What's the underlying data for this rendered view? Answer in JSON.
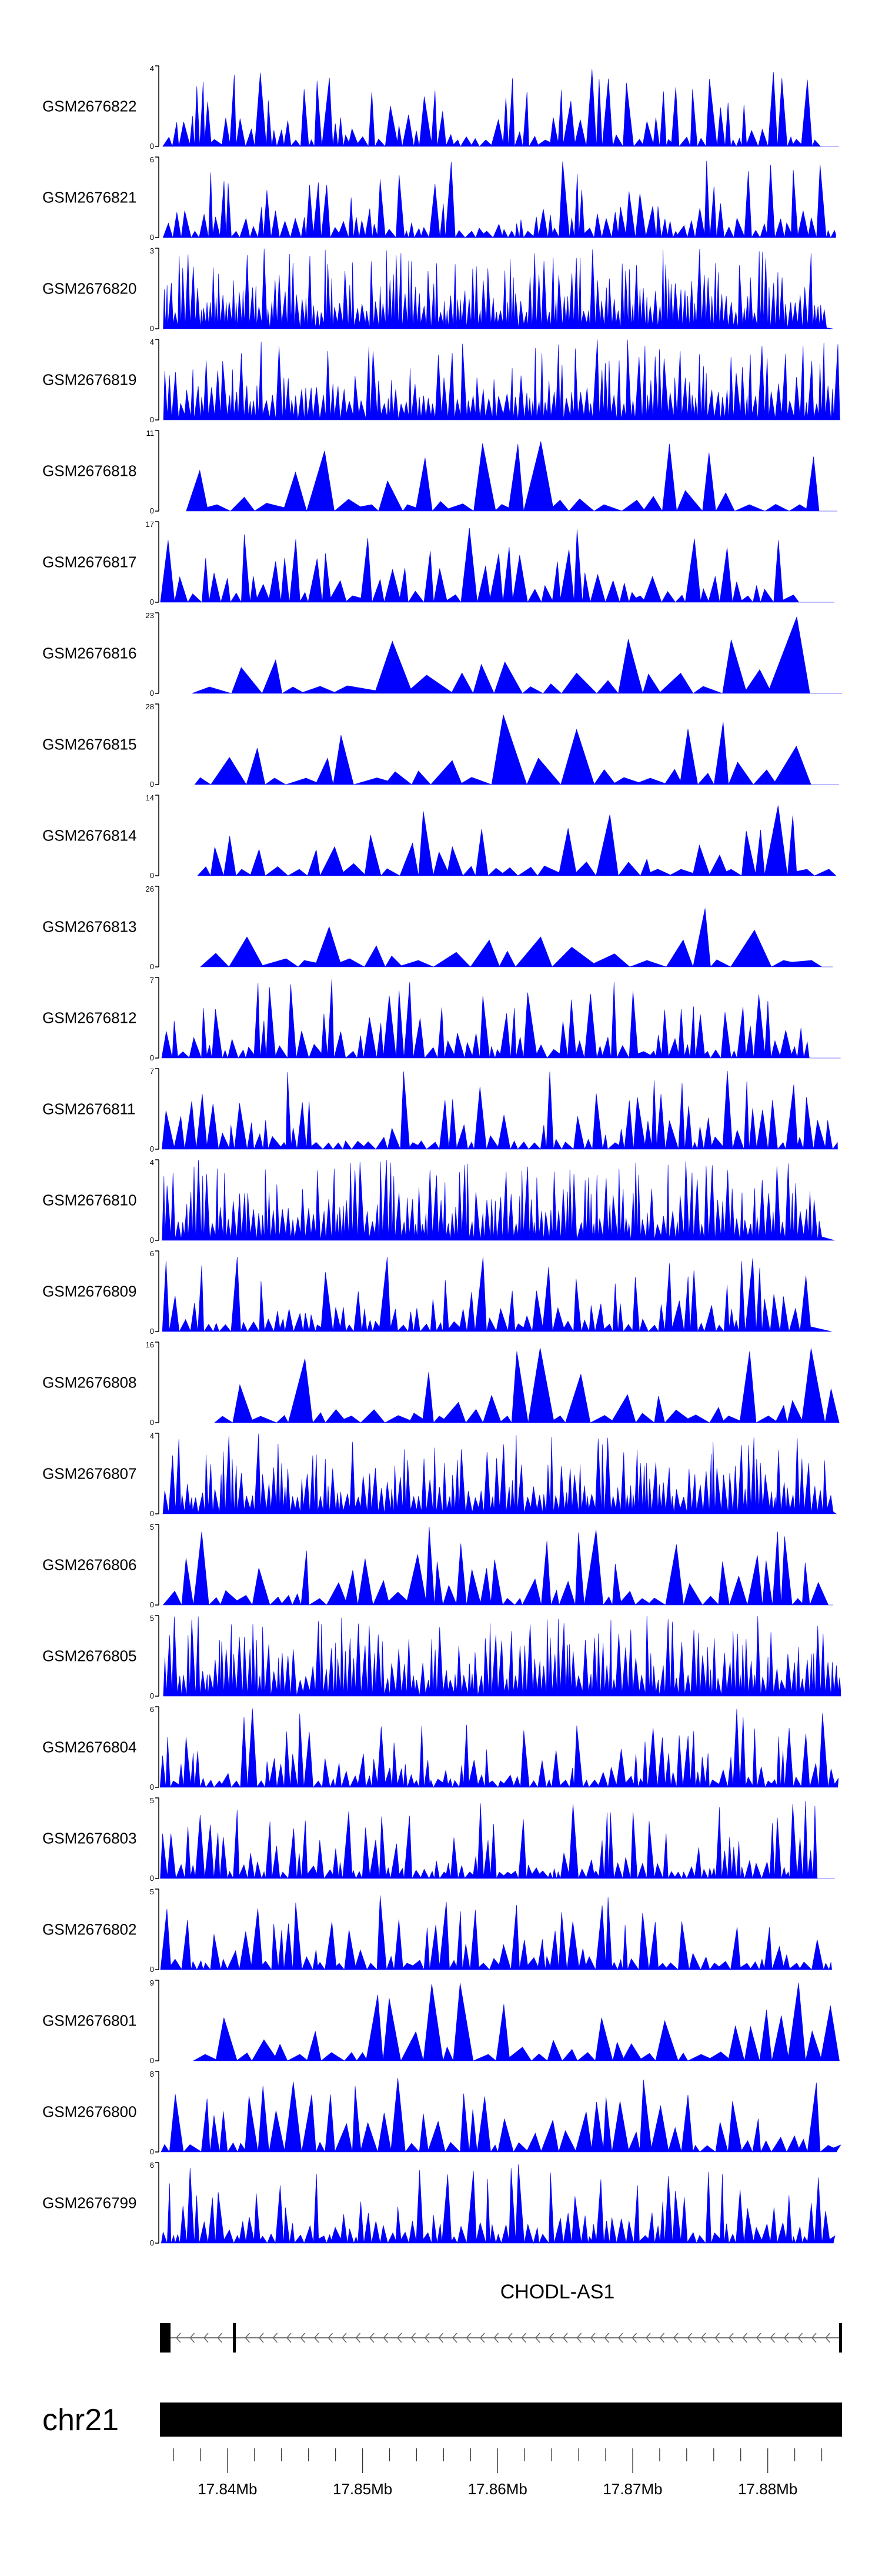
{
  "chart_data": {
    "type": "area",
    "title": "",
    "fill_color": "#0000ff",
    "axis_color": "#000000",
    "tracks": [
      {
        "name": "GSM2676822",
        "ymax": "4",
        "ymin": "0",
        "density": 80,
        "pattern": "spiky"
      },
      {
        "name": "GSM2676821",
        "ymax": "6",
        "ymin": "0",
        "density": 90,
        "pattern": "spiky"
      },
      {
        "name": "GSM2676820",
        "ymax": "3",
        "ymin": "0",
        "density": 170,
        "pattern": "dense"
      },
      {
        "name": "GSM2676819",
        "ymax": "4",
        "ymin": "0",
        "density": 140,
        "pattern": "dense"
      },
      {
        "name": "GSM2676818",
        "ymax": "11",
        "ymin": "0",
        "density": 30,
        "pattern": "sparse"
      },
      {
        "name": "GSM2676817",
        "ymax": "17",
        "ymin": "0",
        "density": 55,
        "pattern": "spiky"
      },
      {
        "name": "GSM2676816",
        "ymax": "23",
        "ymin": "0",
        "density": 22,
        "pattern": "sparse"
      },
      {
        "name": "GSM2676815",
        "ymax": "28",
        "ymin": "0",
        "density": 25,
        "pattern": "sparse"
      },
      {
        "name": "GSM2676814",
        "ymax": "14",
        "ymin": "0",
        "density": 40,
        "pattern": "sparse"
      },
      {
        "name": "GSM2676813",
        "ymax": "26",
        "ymin": "0",
        "density": 22,
        "pattern": "sparse"
      },
      {
        "name": "GSM2676812",
        "ymax": "7",
        "ymin": "0",
        "density": 75,
        "pattern": "spiky"
      },
      {
        "name": "GSM2676811",
        "ymax": "7",
        "ymin": "0",
        "density": 75,
        "pattern": "spiky"
      },
      {
        "name": "GSM2676810",
        "ymax": "4",
        "ymin": "0",
        "density": 150,
        "pattern": "dense"
      },
      {
        "name": "GSM2676809",
        "ymax": "6",
        "ymin": "0",
        "density": 80,
        "pattern": "spiky"
      },
      {
        "name": "GSM2676808",
        "ymax": "16",
        "ymin": "0",
        "density": 35,
        "pattern": "sparse"
      },
      {
        "name": "GSM2676807",
        "ymax": "4",
        "ymin": "0",
        "density": 140,
        "pattern": "dense"
      },
      {
        "name": "GSM2676806",
        "ymax": "5",
        "ymin": "0",
        "density": 50,
        "pattern": "spiky"
      },
      {
        "name": "GSM2676805",
        "ymax": "5",
        "ymin": "0",
        "density": 150,
        "pattern": "dense"
      },
      {
        "name": "GSM2676804",
        "ymax": "6",
        "ymin": "0",
        "density": 100,
        "pattern": "spiky"
      },
      {
        "name": "GSM2676803",
        "ymax": "5",
        "ymin": "0",
        "density": 100,
        "pattern": "spiky"
      },
      {
        "name": "GSM2676802",
        "ymax": "5",
        "ymin": "0",
        "density": 80,
        "pattern": "spiky"
      },
      {
        "name": "GSM2676801",
        "ymax": "9",
        "ymin": "0",
        "density": 40,
        "pattern": "sparse"
      },
      {
        "name": "GSM2676800",
        "ymax": "8",
        "ymin": "0",
        "density": 55,
        "pattern": "spiky"
      },
      {
        "name": "GSM2676799",
        "ymax": "6",
        "ymin": "0",
        "density": 100,
        "pattern": "spiky"
      }
    ],
    "gene": {
      "name": "CHODL-AS1",
      "strand": "-"
    },
    "chromosome": "chr21",
    "axis": {
      "range_mb": [
        17.835,
        17.8855
      ],
      "ticks": [
        "17.84Mb",
        "17.85Mb",
        "17.86Mb",
        "17.87Mb",
        "17.88Mb"
      ],
      "tick_values": [
        17.84,
        17.85,
        17.86,
        17.87,
        17.88
      ]
    }
  }
}
